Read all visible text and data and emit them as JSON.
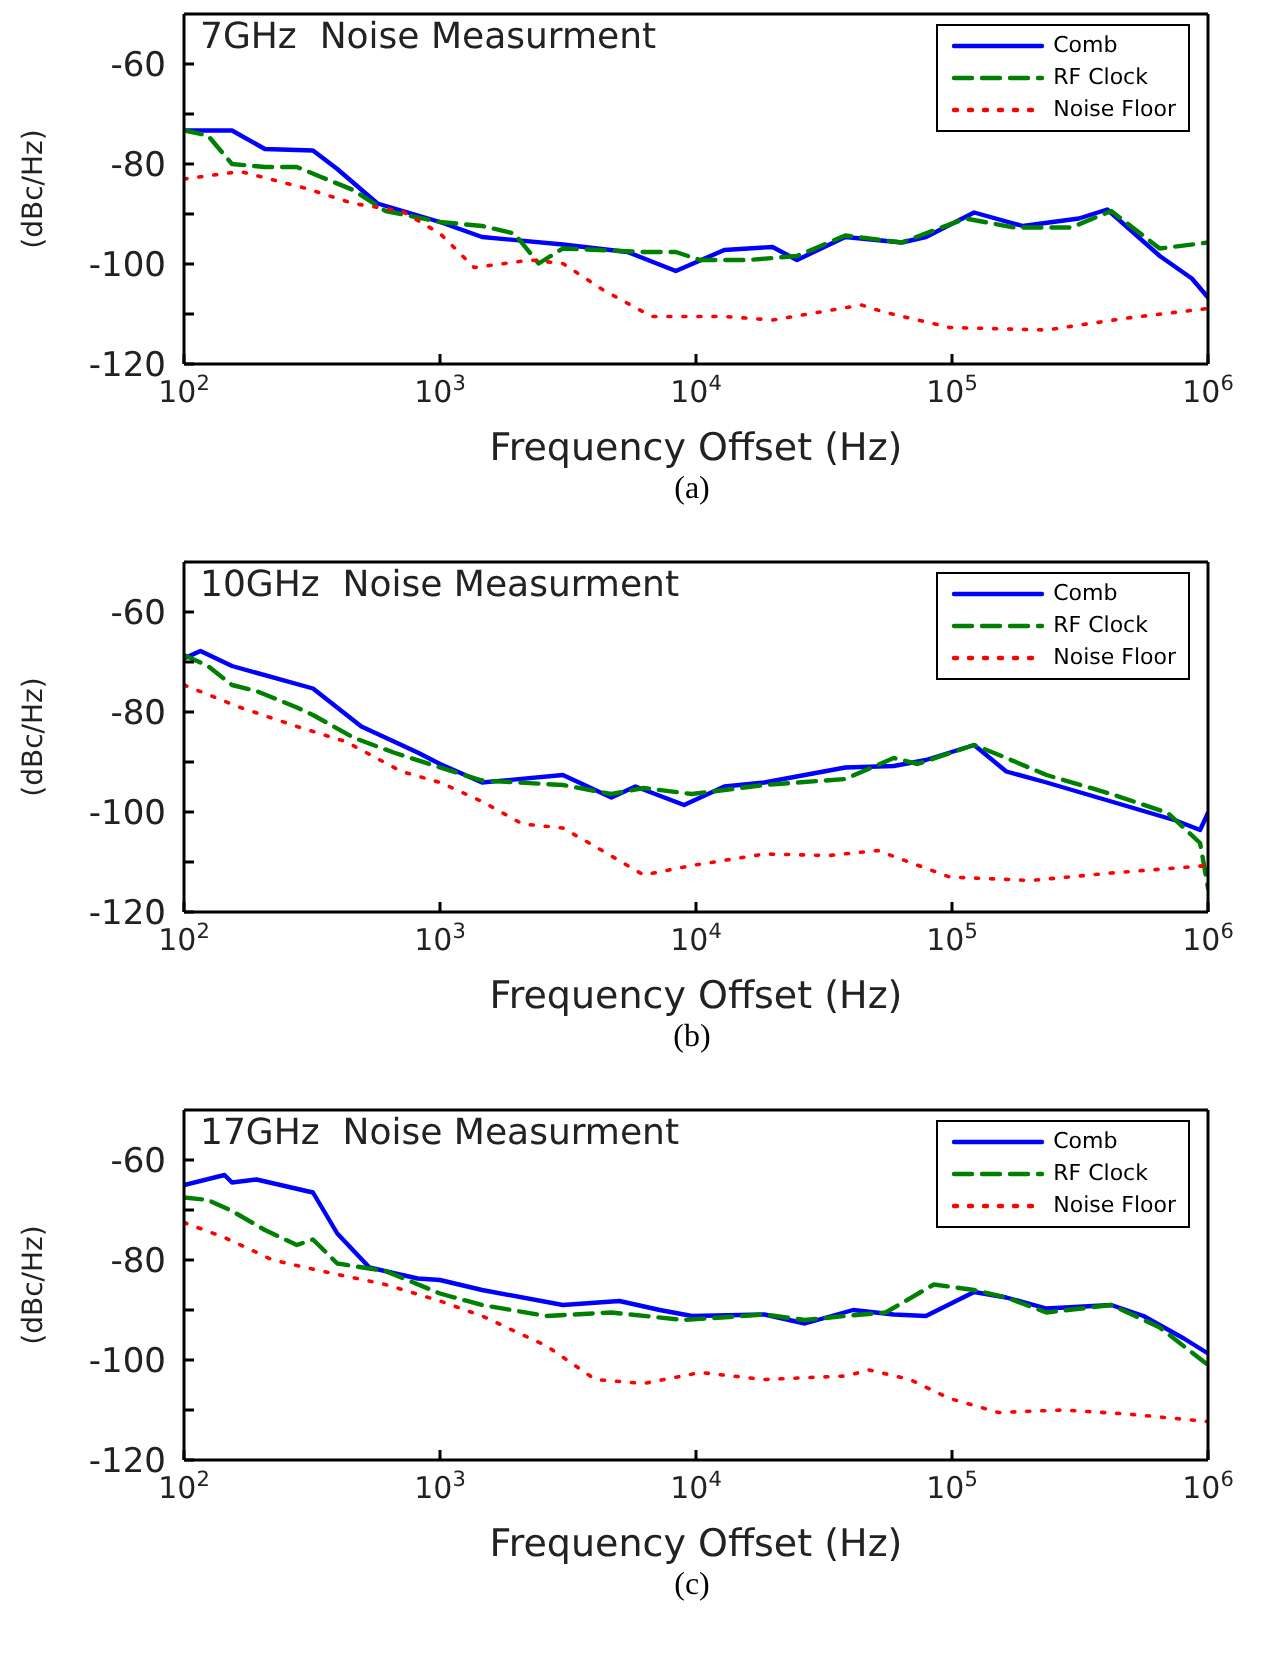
{
  "chart_data": [
    {
      "type": "line",
      "title": "7GHz  Noise Measurment",
      "xlabel": "Frequency Offset (Hz)",
      "ylabel": "(dBc/Hz)",
      "annotations": [
        "(a)"
      ],
      "log": "x",
      "xlim": [
        100,
        1000000
      ],
      "xticks": [
        {
          "value": 100,
          "label": "10$^{2}$"
        },
        {
          "value": 1000,
          "label": "10$^{3}$"
        },
        {
          "value": 10000,
          "label": "10$^{4}$"
        },
        {
          "value": 100000,
          "label": "10$^{5}$"
        },
        {
          "value": 1000000,
          "label": "10$^{6}$"
        }
      ],
      "ylim": [
        -120,
        -50
      ],
      "yticks": [
        -120,
        {
          "value": -110,
          "label": null
        },
        -100,
        {
          "value": -90,
          "label": null
        },
        -80,
        {
          "value": -70,
          "label": null
        },
        -60
      ],
      "legend": "top right",
      "series": [
        {
          "name": "Comb",
          "color": "#0000ff",
          "line_style": "solid",
          "x": [
            100,
            154,
            207,
            319,
            397,
            570,
            1000,
            1460,
            3020,
            5400,
            8340,
            12900,
            19900,
            24800,
            38300,
            63600,
            79100,
            122000,
            189000,
            313000,
            404000,
            648000,
            865000,
            1000000
          ],
          "values": [
            -73.3,
            -73.3,
            -77,
            -77.3,
            -81,
            -87.9,
            -91.6,
            -94.6,
            -96.1,
            -97.6,
            -101.4,
            -97.2,
            -96.6,
            -99.2,
            -94.6,
            -95.7,
            -94.6,
            -89.7,
            -92.4,
            -90.9,
            -89.1,
            -98.4,
            -102.9,
            -106.7
          ]
        },
        {
          "name": "RF Clock",
          "color": "#008000",
          "line_style": "dashed",
          "x": [
            100,
            124,
            154,
            207,
            276,
            343,
            458,
            612,
            1000,
            1460,
            1950,
            2430,
            3020,
            6240,
            8340,
            10400,
            16000,
            24800,
            38300,
            63600,
            113000,
            175000,
            292000,
            419000,
            648000,
            1000000
          ],
          "values": [
            -73.3,
            -74.3,
            -80,
            -80.6,
            -80.6,
            -82.6,
            -85.2,
            -89.4,
            -91.6,
            -92.4,
            -93.9,
            -99.9,
            -96.9,
            -97.6,
            -97.6,
            -99.2,
            -99.2,
            -98.4,
            -94.3,
            -95.7,
            -90.9,
            -92.7,
            -92.7,
            -89.4,
            -96.9,
            -95.7
          ]
        },
        {
          "name": "Noise Floor",
          "color": "#ff0000",
          "line_style": "dotted",
          "x": [
            100,
            166,
            296,
            458,
            708,
            1000,
            1360,
            2260,
            3020,
            4340,
            6710,
            12900,
            19900,
            44300,
            55000,
            98000,
            234000,
            484000,
            1000000
          ],
          "values": [
            -83,
            -81.5,
            -84.8,
            -87.9,
            -89.4,
            -93.9,
            -100.7,
            -99.2,
            -99.9,
            -105.2,
            -110.5,
            -110.5,
            -111.2,
            -108.2,
            -109.7,
            -112.7,
            -113.2,
            -110.8,
            -108.9
          ]
        }
      ]
    },
    {
      "type": "line",
      "title": "10GHz  Noise Measurment",
      "xlabel": "Frequency Offset (Hz)",
      "ylabel": "(dBc/Hz)",
      "annotations": [
        "(b)"
      ],
      "log": "x",
      "xlim": [
        100,
        1000000
      ],
      "xticks": [
        {
          "value": 100,
          "label": "10$^{2}$"
        },
        {
          "value": 1000,
          "label": "10$^{3}$"
        },
        {
          "value": 10000,
          "label": "10$^{4}$"
        },
        {
          "value": 100000,
          "label": "10$^{5}$"
        },
        {
          "value": 1000000,
          "label": "10$^{6}$"
        }
      ],
      "ylim": [
        -120,
        -50
      ],
      "yticks": [
        -120,
        {
          "value": -110,
          "label": null
        },
        -100,
        {
          "value": -90,
          "label": null
        },
        -80,
        {
          "value": -70,
          "label": null
        },
        -60
      ],
      "legend": "top right",
      "series": [
        {
          "name": "Comb",
          "color": "#0000ff",
          "line_style": "solid",
          "x": [
            100,
            116,
            154,
            319,
            493,
            818,
            1000,
            1460,
            3020,
            4670,
            5800,
            8980,
            12900,
            18500,
            38300,
            59200,
            79100,
            122000,
            163000,
            234000,
            419000,
            748000,
            931000,
            1000000
          ],
          "values": [
            -69.3,
            -67.8,
            -70.8,
            -75.3,
            -82.9,
            -88.1,
            -90.4,
            -94.1,
            -92.6,
            -97.1,
            -94.9,
            -98.6,
            -94.9,
            -94.1,
            -91.1,
            -90.8,
            -89.6,
            -86.6,
            -91.9,
            -94.1,
            -97.9,
            -101.7,
            -103.6,
            -100.2
          ]
        },
        {
          "name": "RF Clock",
          "color": "#008000",
          "line_style": "dashed",
          "x": [
            100,
            124,
            154,
            192,
            276,
            319,
            458,
            659,
            1000,
            1460,
            3020,
            4670,
            6240,
            9640,
            18500,
            38300,
            59200,
            73400,
            122000,
            163000,
            234000,
            419000,
            697000,
            931000,
            1000000
          ],
          "values": [
            -68.6,
            -70.8,
            -74.6,
            -75.8,
            -79.1,
            -80.6,
            -85.1,
            -88.1,
            -91.1,
            -93.7,
            -94.6,
            -96.4,
            -95.2,
            -96.4,
            -94.6,
            -93.4,
            -89.2,
            -90.4,
            -86.6,
            -89.2,
            -92.6,
            -96.4,
            -100.2,
            -106.2,
            -115.2
          ]
        },
        {
          "name": "Noise Floor",
          "color": "#ff0000",
          "line_style": "dotted",
          "x": [
            100,
            166,
            276,
            427,
            708,
            1000,
            1460,
            2100,
            3020,
            4040,
            6240,
            9640,
            18500,
            33100,
            51200,
            98000,
            203000,
            419000,
            1000000
          ],
          "values": [
            -74.6,
            -79.1,
            -82.9,
            -85.9,
            -91.9,
            -94.1,
            -97.9,
            -102.4,
            -103.2,
            -106.9,
            -112.6,
            -110.7,
            -108.4,
            -108.7,
            -107.7,
            -113,
            -113.7,
            -112.2,
            -110.7
          ]
        }
      ]
    },
    {
      "type": "line",
      "title": "17GHz  Noise Measurment",
      "xlabel": "Frequency Offset (Hz)",
      "ylabel": "(dBc/Hz)",
      "annotations": [
        "(c)"
      ],
      "log": "x",
      "xlim": [
        100,
        1000000
      ],
      "xticks": [
        {
          "value": 100,
          "label": "10$^{2}$"
        },
        {
          "value": 1000,
          "label": "10$^{3}$"
        },
        {
          "value": 10000,
          "label": "10$^{4}$"
        },
        {
          "value": 100000,
          "label": "10$^{5}$"
        },
        {
          "value": 1000000,
          "label": "10$^{6}$"
        }
      ],
      "ylim": [
        -120,
        -50
      ],
      "yticks": [
        -120,
        {
          "value": -110,
          "label": null
        },
        -100,
        {
          "value": -90,
          "label": null
        },
        -80,
        {
          "value": -70,
          "label": null
        },
        -60
      ],
      "legend": "top right",
      "series": [
        {
          "name": "Comb",
          "color": "#0000ff",
          "line_style": "solid",
          "x": [
            100,
            144,
            154,
            192,
            319,
            397,
            530,
            818,
            1000,
            1460,
            3020,
            5020,
            7220,
            9640,
            18500,
            26600,
            41100,
            59200,
            79100,
            122000,
            163000,
            234000,
            419000,
            560000,
            805000,
            1000000
          ],
          "values": [
            -65,
            -63,
            -64.5,
            -63.9,
            -66.5,
            -74.7,
            -81.5,
            -83.7,
            -84,
            -86,
            -89,
            -88.2,
            -90,
            -91.2,
            -90.9,
            -92.7,
            -90,
            -90.9,
            -91.2,
            -86.4,
            -87.5,
            -89.7,
            -89,
            -91.2,
            -95.7,
            -98.7
          ]
        },
        {
          "name": "RF Clock",
          "color": "#008000",
          "line_style": "dashed",
          "x": [
            100,
            124,
            154,
            207,
            276,
            319,
            397,
            612,
            1000,
            1460,
            2610,
            4670,
            8980,
            18500,
            26600,
            38300,
            55000,
            84900,
            122000,
            163000,
            234000,
            419000,
            648000,
            1000000
          ],
          "values": [
            -67.5,
            -68,
            -70.2,
            -74,
            -77,
            -75.9,
            -80.7,
            -82.2,
            -86.7,
            -89,
            -91.2,
            -90.5,
            -92,
            -90.9,
            -92,
            -91.2,
            -90.5,
            -84.9,
            -86,
            -87.5,
            -90.5,
            -89,
            -93.5,
            -101
          ]
        },
        {
          "name": "Noise Floor",
          "color": "#ff0000",
          "line_style": "dotted",
          "x": [
            100,
            144,
            222,
            343,
            612,
            1000,
            1460,
            2610,
            4040,
            6240,
            10400,
            18500,
            38300,
            47500,
            68400,
            98000,
            152000,
            271000,
            484000,
            1000000
          ],
          "values": [
            -72.5,
            -75.5,
            -80,
            -82.2,
            -84.9,
            -88.2,
            -91.2,
            -97.2,
            -103.9,
            -104.7,
            -102.5,
            -103.9,
            -103.2,
            -102,
            -103.9,
            -107.7,
            -110.5,
            -110,
            -110.8,
            -112.3
          ]
        }
      ]
    }
  ]
}
